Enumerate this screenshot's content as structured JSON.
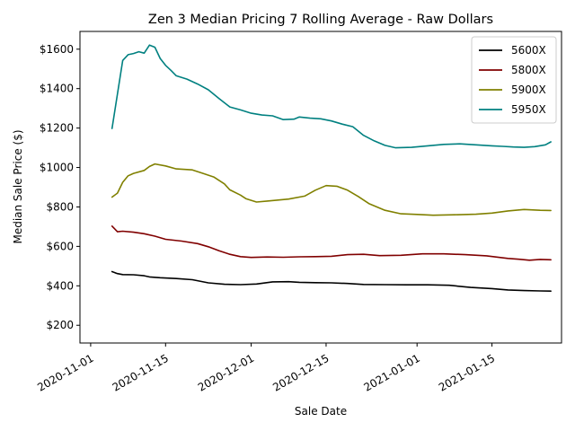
{
  "chart_data": {
    "type": "line",
    "title": "Zen 3 Median Pricing 7 Rolling Average - Raw Dollars",
    "xlabel": "Sale Date",
    "ylabel": "Median Sale Price ($)",
    "xlim": [
      "2020-10-30",
      "2021-01-28"
    ],
    "ylim": [
      110,
      1690
    ],
    "x_ticks": [
      "2020-11-01",
      "2020-11-15",
      "2020-12-01",
      "2020-12-15",
      "2021-01-01",
      "2021-01-15"
    ],
    "y_ticks": [
      200,
      400,
      600,
      800,
      1000,
      1200,
      1400,
      1600
    ],
    "y_tick_labels": [
      "$200",
      "$400",
      "$600",
      "$800",
      "$1000",
      "$1200",
      "$1400",
      "$1600"
    ],
    "grid": false,
    "legend_position": "top-right",
    "series": [
      {
        "name": "5600X",
        "color": "#000000",
        "points": [
          [
            "2020-11-05",
            472
          ],
          [
            "2020-11-06",
            462
          ],
          [
            "2020-11-07",
            457
          ],
          [
            "2020-11-09",
            456
          ],
          [
            "2020-11-11",
            451
          ],
          [
            "2020-11-12",
            445
          ],
          [
            "2020-11-14",
            441
          ],
          [
            "2020-11-17",
            437
          ],
          [
            "2020-11-20",
            431
          ],
          [
            "2020-11-23",
            415
          ],
          [
            "2020-11-26",
            408
          ],
          [
            "2020-11-29",
            406
          ],
          [
            "2020-12-02",
            409
          ],
          [
            "2020-12-05",
            420
          ],
          [
            "2020-12-08",
            421
          ],
          [
            "2020-12-10",
            418
          ],
          [
            "2020-12-13",
            416
          ],
          [
            "2020-12-16",
            415
          ],
          [
            "2020-12-19",
            412
          ],
          [
            "2020-12-22",
            407
          ],
          [
            "2020-12-26",
            406
          ],
          [
            "2020-12-30",
            405
          ],
          [
            "2021-01-03",
            405
          ],
          [
            "2021-01-07",
            403
          ],
          [
            "2021-01-11",
            392
          ],
          [
            "2021-01-15",
            386
          ],
          [
            "2021-01-18",
            379
          ],
          [
            "2021-01-21",
            376
          ],
          [
            "2021-01-24",
            374
          ],
          [
            "2021-01-26",
            373
          ]
        ]
      },
      {
        "name": "5800X",
        "color": "#800000",
        "points": [
          [
            "2020-11-05",
            703
          ],
          [
            "2020-11-06",
            674
          ],
          [
            "2020-11-07",
            677
          ],
          [
            "2020-11-09",
            672
          ],
          [
            "2020-11-11",
            664
          ],
          [
            "2020-11-13",
            652
          ],
          [
            "2020-11-15",
            636
          ],
          [
            "2020-11-18",
            627
          ],
          [
            "2020-11-21",
            614
          ],
          [
            "2020-11-23",
            598
          ],
          [
            "2020-11-25",
            578
          ],
          [
            "2020-11-27",
            560
          ],
          [
            "2020-11-29",
            548
          ],
          [
            "2020-12-01",
            544
          ],
          [
            "2020-12-04",
            546
          ],
          [
            "2020-12-07",
            545
          ],
          [
            "2020-12-10",
            547
          ],
          [
            "2020-12-13",
            548
          ],
          [
            "2020-12-16",
            550
          ],
          [
            "2020-12-19",
            558
          ],
          [
            "2020-12-22",
            560
          ],
          [
            "2020-12-25",
            553
          ],
          [
            "2020-12-29",
            555
          ],
          [
            "2021-01-02",
            562
          ],
          [
            "2021-01-06",
            562
          ],
          [
            "2021-01-10",
            558
          ],
          [
            "2021-01-14",
            552
          ],
          [
            "2021-01-18",
            539
          ],
          [
            "2021-01-20",
            535
          ],
          [
            "2021-01-22",
            530
          ],
          [
            "2021-01-24",
            534
          ],
          [
            "2021-01-26",
            532
          ]
        ]
      },
      {
        "name": "5900X",
        "color": "#808000",
        "points": [
          [
            "2020-11-05",
            850
          ],
          [
            "2020-11-06",
            870
          ],
          [
            "2020-11-07",
            925
          ],
          [
            "2020-11-08",
            958
          ],
          [
            "2020-11-09",
            970
          ],
          [
            "2020-11-11",
            985
          ],
          [
            "2020-11-12",
            1005
          ],
          [
            "2020-11-13",
            1018
          ],
          [
            "2020-11-15",
            1008
          ],
          [
            "2020-11-17",
            993
          ],
          [
            "2020-11-20",
            988
          ],
          [
            "2020-11-22",
            970
          ],
          [
            "2020-11-24",
            952
          ],
          [
            "2020-11-26",
            917
          ],
          [
            "2020-11-27",
            887
          ],
          [
            "2020-11-29",
            860
          ],
          [
            "2020-11-30",
            842
          ],
          [
            "2020-12-02",
            825
          ],
          [
            "2020-12-04",
            830
          ],
          [
            "2020-12-06",
            835
          ],
          [
            "2020-12-08",
            840
          ],
          [
            "2020-12-11",
            855
          ],
          [
            "2020-12-13",
            885
          ],
          [
            "2020-12-15",
            908
          ],
          [
            "2020-12-17",
            905
          ],
          [
            "2020-12-19",
            885
          ],
          [
            "2020-12-21",
            853
          ],
          [
            "2020-12-23",
            817
          ],
          [
            "2020-12-26",
            783
          ],
          [
            "2020-12-29",
            765
          ],
          [
            "2021-01-01",
            762
          ],
          [
            "2021-01-04",
            758
          ],
          [
            "2021-01-08",
            760
          ],
          [
            "2021-01-12",
            763
          ],
          [
            "2021-01-15",
            769
          ],
          [
            "2021-01-18",
            780
          ],
          [
            "2021-01-21",
            787
          ],
          [
            "2021-01-24",
            783
          ],
          [
            "2021-01-26",
            782
          ]
        ]
      },
      {
        "name": "5950X",
        "color": "#008080",
        "points": [
          [
            "2020-11-05",
            1198
          ],
          [
            "2020-11-07",
            1543
          ],
          [
            "2020-11-08",
            1572
          ],
          [
            "2020-11-09",
            1578
          ],
          [
            "2020-11-10",
            1587
          ],
          [
            "2020-11-11",
            1580
          ],
          [
            "2020-11-12",
            1621
          ],
          [
            "2020-11-13",
            1610
          ],
          [
            "2020-11-14",
            1553
          ],
          [
            "2020-11-15",
            1518
          ],
          [
            "2020-11-16",
            1493
          ],
          [
            "2020-11-17",
            1465
          ],
          [
            "2020-11-19",
            1448
          ],
          [
            "2020-11-21",
            1423
          ],
          [
            "2020-11-23",
            1394
          ],
          [
            "2020-11-25",
            1350
          ],
          [
            "2020-11-27",
            1307
          ],
          [
            "2020-11-29",
            1292
          ],
          [
            "2020-12-01",
            1275
          ],
          [
            "2020-12-03",
            1266
          ],
          [
            "2020-12-05",
            1262
          ],
          [
            "2020-12-07",
            1243
          ],
          [
            "2020-12-09",
            1245
          ],
          [
            "2020-12-10",
            1256
          ],
          [
            "2020-12-12",
            1250
          ],
          [
            "2020-12-14",
            1247
          ],
          [
            "2020-12-16",
            1236
          ],
          [
            "2020-12-18",
            1220
          ],
          [
            "2020-12-20",
            1207
          ],
          [
            "2020-12-22",
            1163
          ],
          [
            "2020-12-24",
            1135
          ],
          [
            "2020-12-26",
            1112
          ],
          [
            "2020-12-28",
            1100
          ],
          [
            "2020-12-31",
            1102
          ],
          [
            "2021-01-03",
            1110
          ],
          [
            "2021-01-06",
            1117
          ],
          [
            "2021-01-09",
            1120
          ],
          [
            "2021-01-12",
            1115
          ],
          [
            "2021-01-15",
            1110
          ],
          [
            "2021-01-17",
            1107
          ],
          [
            "2021-01-19",
            1104
          ],
          [
            "2021-01-21",
            1102
          ],
          [
            "2021-01-23",
            1106
          ],
          [
            "2021-01-25",
            1115
          ],
          [
            "2021-01-26",
            1130
          ]
        ]
      }
    ]
  }
}
